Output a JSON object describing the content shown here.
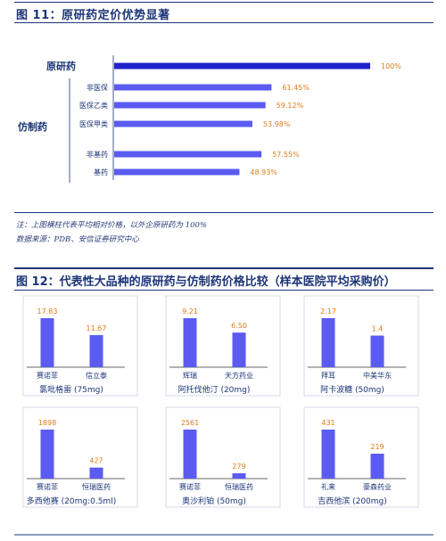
{
  "figure1": {
    "title": "图 11：原研药定价优势显著",
    "note": "注：上图横柱代表平均相对价格，以外企原研药为 100%",
    "source": "数据来源：PDB、安信证券研究中心",
    "group_labels": [
      "原研药",
      "仿制药"
    ]
  },
  "figure2": {
    "title": "图 12：代表性大品种的原研药与仿制药价格比较（样本医院平均采购价）"
  },
  "colors": {
    "bar": "#5b5bf2",
    "bar_top": "#2222cc",
    "value": "#e07c1a",
    "text": "#1c3577"
  },
  "chart_data": [
    {
      "type": "bar",
      "orientation": "horizontal",
      "categories": [
        "原研药",
        "非医保",
        "医保乙类",
        "医保甲类",
        "非基药",
        "基药"
      ],
      "values": [
        100,
        61.45,
        59.12,
        53.98,
        57.55,
        48.93
      ],
      "value_labels": [
        "100%",
        "61.45%",
        "59.12%",
        "53.98%",
        "57.55%",
        "48.93%"
      ],
      "xlim": [
        0,
        100
      ]
    },
    {
      "type": "bar",
      "categories": [
        "赛诺菲",
        "信立泰"
      ],
      "values": [
        17.83,
        11.67
      ],
      "value_labels": [
        "17.83",
        "11.67"
      ],
      "xlabel": "氯吡格雷 (75mg)"
    },
    {
      "type": "bar",
      "categories": [
        "辉瑞",
        "天方药业"
      ],
      "values": [
        9.21,
        6.5
      ],
      "value_labels": [
        "9.21",
        "6.50"
      ],
      "xlabel": "阿托伐他汀 (20mg)"
    },
    {
      "type": "bar",
      "categories": [
        "拜耳",
        "中美华东"
      ],
      "values": [
        2.17,
        1.4
      ],
      "value_labels": [
        "2.17",
        "1.4"
      ],
      "xlabel": "阿卡波糖 (50mg)"
    },
    {
      "type": "bar",
      "categories": [
        "赛诺菲",
        "恒瑞医药"
      ],
      "values": [
        1898,
        427
      ],
      "value_labels": [
        "1898",
        "427"
      ],
      "xlabel": "多西他赛 (20mg:0.5ml)"
    },
    {
      "type": "bar",
      "categories": [
        "赛诺菲",
        "恒瑞医药"
      ],
      "values": [
        2561,
        279
      ],
      "value_labels": [
        "2561",
        "279"
      ],
      "xlabel": "奥沙利铂 (50mg)"
    },
    {
      "type": "bar",
      "categories": [
        "礼来",
        "豪森药业"
      ],
      "values": [
        431,
        219
      ],
      "value_labels": [
        "431",
        "219"
      ],
      "xlabel": "吉西他滨 (200mg)"
    }
  ]
}
